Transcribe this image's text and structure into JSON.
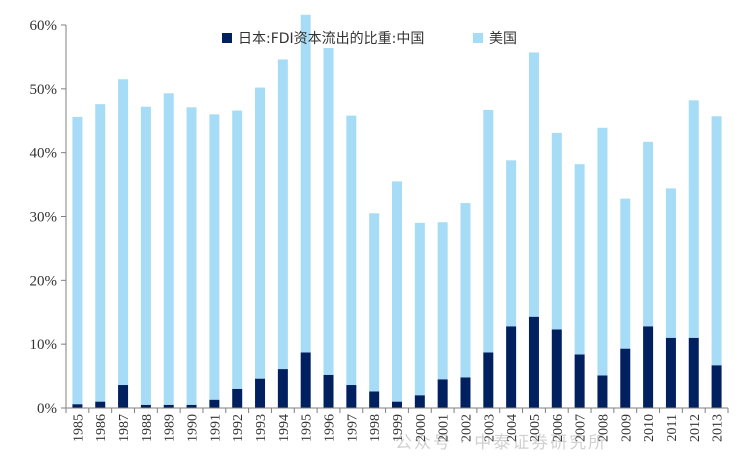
{
  "chart_data": {
    "type": "bar",
    "stacked": true,
    "categories": [
      "1985",
      "1986",
      "1987",
      "1988",
      "1989",
      "1990",
      "1991",
      "1992",
      "1993",
      "1994",
      "1995",
      "1996",
      "1997",
      "1998",
      "1999",
      "2000",
      "2001",
      "2002",
      "2003",
      "2004",
      "2005",
      "2006",
      "2007",
      "2008",
      "2009",
      "2010",
      "2011",
      "2012",
      "2013"
    ],
    "series": [
      {
        "name": "日本:FDI资本流出的比重:中国",
        "color": "#002060",
        "values": [
          0.6,
          1.0,
          3.6,
          0.5,
          0.5,
          0.5,
          1.3,
          3.0,
          4.6,
          6.1,
          8.7,
          5.2,
          3.6,
          2.6,
          1.0,
          2.0,
          4.5,
          4.8,
          8.7,
          12.8,
          14.3,
          12.3,
          8.4,
          5.1,
          9.3,
          12.8,
          11.0,
          11.0,
          6.7
        ]
      },
      {
        "name": "美国",
        "color": "#a6dcf5",
        "values": [
          45.0,
          46.6,
          47.9,
          46.7,
          48.8,
          46.6,
          44.7,
          43.6,
          45.6,
          48.5,
          52.9,
          51.2,
          42.2,
          27.9,
          34.5,
          27.0,
          24.6,
          27.3,
          38.0,
          26.0,
          41.4,
          30.8,
          29.8,
          38.8,
          23.5,
          28.9,
          23.4,
          37.2,
          39.0
        ]
      }
    ],
    "yticks": [
      "0%",
      "10%",
      "20%",
      "30%",
      "40%",
      "50%",
      "60%"
    ],
    "ylim": [
      0,
      60
    ],
    "grid": false,
    "legend_position": "top-center"
  },
  "watermark": "公众号 · 中泰证券研究所"
}
